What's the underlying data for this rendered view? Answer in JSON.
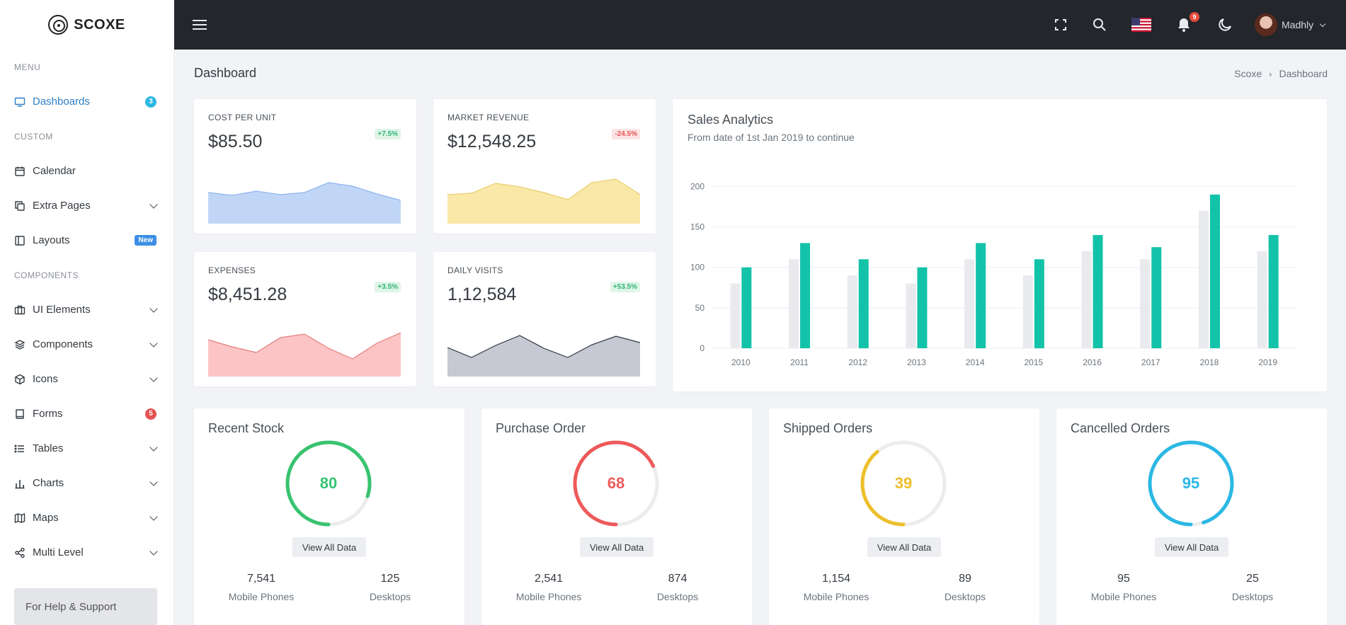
{
  "brand": {
    "name": "SCOXE"
  },
  "sidebar": {
    "sections": {
      "menu": "MENU",
      "custom": "CUSTOM",
      "components": "COMPONENTS"
    },
    "items": [
      {
        "label": "Dashboards",
        "icon": "monitor-icon",
        "badge": "3",
        "badge_color": "#2bb8e4",
        "active": true
      },
      {
        "label": "Calendar",
        "icon": "calendar-icon"
      },
      {
        "label": "Extra Pages",
        "icon": "copy-icon",
        "has_submenu": true
      },
      {
        "label": "Layouts",
        "icon": "layout-icon",
        "badge": "New",
        "badge_color": "#3c8ee4"
      },
      {
        "label": "UI Elements",
        "icon": "briefcase-icon",
        "has_submenu": true
      },
      {
        "label": "Components",
        "icon": "layers-icon",
        "has_submenu": true
      },
      {
        "label": "Icons",
        "icon": "box-icon",
        "has_submenu": true
      },
      {
        "label": "Forms",
        "icon": "book-icon",
        "badge": "5",
        "badge_color": "#e55353"
      },
      {
        "label": "Tables",
        "icon": "list-icon",
        "has_submenu": true
      },
      {
        "label": "Charts",
        "icon": "bar-chart-icon",
        "has_submenu": true
      },
      {
        "label": "Maps",
        "icon": "map-icon",
        "has_submenu": true
      },
      {
        "label": "Multi Level",
        "icon": "share-icon",
        "has_submenu": true
      }
    ],
    "help": "For Help & Support"
  },
  "topbar": {
    "icons": [
      "menu-icon",
      "fullscreen-icon",
      "search-icon",
      "us-flag-icon",
      "bell-icon",
      "moon-icon"
    ],
    "notification_count": "9",
    "user_name": "Madhly"
  },
  "page": {
    "title": "Dashboard",
    "breadcrumb": [
      "Scoxe",
      "Dashboard"
    ]
  },
  "stats": [
    {
      "label": "COST PER UNIT",
      "value": "$85.50",
      "change": "+7.5%",
      "trend": "up",
      "color": "#8db3ef",
      "fill": "#c1d6f6",
      "spark": [
        44,
        40,
        46,
        41,
        44,
        58,
        53,
        42,
        33
      ]
    },
    {
      "label": "MARKET REVENUE",
      "value": "$12,548.25",
      "change": "-24.5%",
      "trend": "down",
      "color": "#e9cf6c",
      "fill": "#fae8a8",
      "spark": [
        41,
        43,
        57,
        52,
        44,
        34,
        58,
        63,
        41
      ]
    },
    {
      "label": "EXPENSES",
      "value": "$8,451.28",
      "change": "+3.5%",
      "trend": "up",
      "color": "#e57d7d",
      "fill": "#fcc4c4",
      "spark": [
        52,
        42,
        34,
        55,
        60,
        40,
        25,
        47,
        62
      ]
    },
    {
      "label": "DAILY VISITS",
      "value": "1,12,584",
      "change": "+53.5%",
      "trend": "up",
      "color": "#2d3340",
      "fill": "#c6c9d3",
      "spark": [
        41,
        27,
        44,
        58,
        40,
        27,
        45,
        57,
        48
      ]
    }
  ],
  "sales": {
    "title": "Sales Analytics",
    "subtitle": "From date of 1st Jan 2019 to continue"
  },
  "chart_data": {
    "type": "bar",
    "categories": [
      "2010",
      "2011",
      "2012",
      "2013",
      "2014",
      "2015",
      "2016",
      "2017",
      "2018",
      "2019"
    ],
    "series": [
      {
        "values": [
          80,
          110,
          90,
          80,
          110,
          90,
          120,
          110,
          170,
          120
        ],
        "color": "#e9eaed"
      },
      {
        "values": [
          100,
          130,
          110,
          100,
          130,
          110,
          140,
          125,
          190,
          140
        ],
        "color": "#13c3a9"
      }
    ],
    "yticks": [
      0,
      50,
      100,
      150,
      200
    ],
    "ylim": [
      0,
      210
    ]
  },
  "orders": [
    {
      "title": "Recent Stock",
      "value": 80,
      "color": "#37c36f",
      "mobile": "7,541",
      "desktop": "125"
    },
    {
      "title": "Purchase Order",
      "value": 68,
      "color": "#ee5a5a",
      "mobile": "2,541",
      "desktop": "874"
    },
    {
      "title": "Shipped Orders",
      "value": 39,
      "color": "#edbf2c",
      "mobile": "1,154",
      "desktop": "89"
    },
    {
      "title": "Cancelled Orders",
      "value": 95,
      "color": "#2bb8e4",
      "mobile": "95",
      "desktop": "25"
    }
  ],
  "order_labels": {
    "button": "View All Data",
    "mobile": "Mobile Phones",
    "desktop": "Desktops"
  }
}
